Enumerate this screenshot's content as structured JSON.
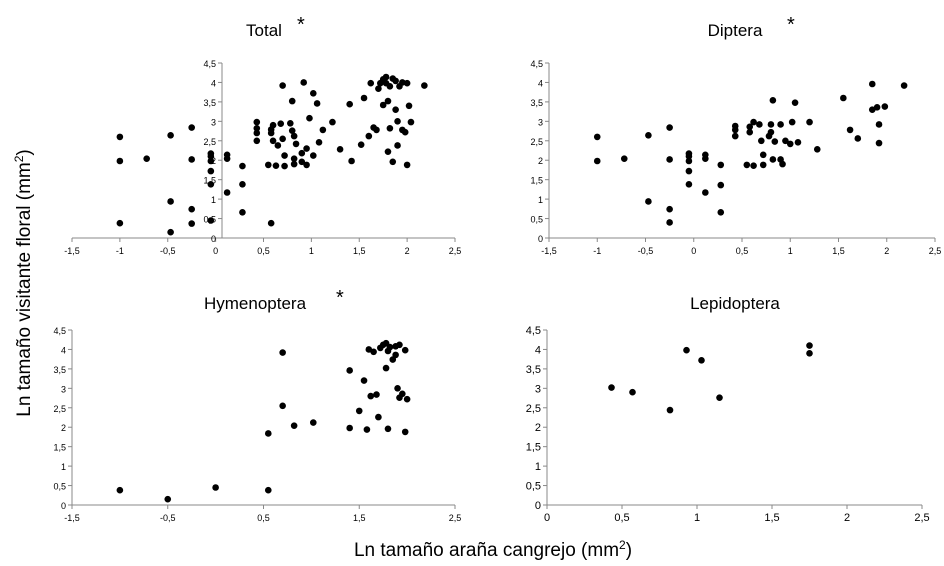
{
  "ylabel_main": "Ln tamaño visitante floral (mm",
  "ylabel_sup": "2",
  "ylabel_close": ")",
  "xlabel_main": "Ln tamaño araña cangrejo (mm",
  "xlabel_sup": "2",
  "xlabel_close": ")",
  "chart_data": [
    {
      "type": "scatter",
      "title": "Total",
      "significance": "*",
      "xlim": [
        -1.5,
        2.5
      ],
      "ylim": [
        0,
        4.5
      ],
      "xticks": [
        -1.5,
        -1,
        -0.5,
        0,
        0.5,
        1,
        1.5,
        2,
        2.5
      ],
      "xtick_labels": [
        "-1,5",
        "-1",
        "-0,5",
        "0",
        "0,5",
        "1",
        "1,5",
        "2",
        "2,5"
      ],
      "yticks": [
        0,
        0.5,
        1,
        1.5,
        2,
        2.5,
        3,
        3.5,
        4,
        4.5
      ],
      "ytick_labels": [
        "0",
        "0,5",
        "1",
        "1,5",
        "2",
        "2,5",
        "3",
        "3,5",
        "4",
        "4,5"
      ],
      "grid": false,
      "points": [
        [
          -1.0,
          2.6
        ],
        [
          -1.0,
          1.98
        ],
        [
          -1.0,
          0.38
        ],
        [
          -0.72,
          2.04
        ],
        [
          -0.47,
          2.64
        ],
        [
          -0.47,
          0.94
        ],
        [
          -0.47,
          0.15
        ],
        [
          -0.25,
          2.84
        ],
        [
          -0.25,
          2.02
        ],
        [
          -0.25,
          0.74
        ],
        [
          -0.25,
          0.37
        ],
        [
          -0.05,
          2.17
        ],
        [
          -0.05,
          2.1
        ],
        [
          -0.05,
          1.98
        ],
        [
          -0.05,
          1.72
        ],
        [
          -0.05,
          1.38
        ],
        [
          -0.05,
          0.45
        ],
        [
          0.12,
          2.14
        ],
        [
          0.12,
          2.04
        ],
        [
          0.12,
          1.17
        ],
        [
          0.28,
          1.85
        ],
        [
          0.28,
          1.38
        ],
        [
          0.28,
          0.66
        ],
        [
          0.43,
          2.98
        ],
        [
          0.43,
          2.82
        ],
        [
          0.43,
          2.7
        ],
        [
          0.43,
          2.5
        ],
        [
          0.55,
          1.88
        ],
        [
          0.58,
          2.79
        ],
        [
          0.58,
          2.7
        ],
        [
          0.58,
          0.38
        ],
        [
          0.6,
          2.5
        ],
        [
          0.6,
          2.9
        ],
        [
          0.63,
          1.86
        ],
        [
          0.65,
          2.38
        ],
        [
          0.68,
          2.94
        ],
        [
          0.7,
          3.92
        ],
        [
          0.7,
          2.55
        ],
        [
          0.72,
          2.12
        ],
        [
          0.72,
          1.85
        ],
        [
          0.78,
          2.95
        ],
        [
          0.8,
          2.76
        ],
        [
          0.8,
          3.52
        ],
        [
          0.82,
          2.62
        ],
        [
          0.82,
          2.04
        ],
        [
          0.82,
          1.9
        ],
        [
          0.84,
          2.42
        ],
        [
          0.9,
          2.18
        ],
        [
          0.9,
          1.96
        ],
        [
          0.92,
          4.0
        ],
        [
          0.95,
          2.3
        ],
        [
          0.95,
          1.88
        ],
        [
          0.98,
          3.08
        ],
        [
          1.02,
          3.72
        ],
        [
          1.02,
          2.12
        ],
        [
          1.06,
          3.46
        ],
        [
          1.08,
          2.46
        ],
        [
          1.12,
          2.78
        ],
        [
          1.22,
          2.98
        ],
        [
          1.3,
          2.28
        ],
        [
          1.4,
          3.44
        ],
        [
          1.42,
          1.98
        ],
        [
          1.52,
          2.4
        ],
        [
          1.55,
          3.6
        ],
        [
          1.6,
          2.62
        ],
        [
          1.62,
          3.98
        ],
        [
          1.65,
          2.84
        ],
        [
          1.68,
          2.78
        ],
        [
          1.7,
          3.84
        ],
        [
          1.72,
          3.98
        ],
        [
          1.75,
          4.08
        ],
        [
          1.75,
          3.42
        ],
        [
          1.78,
          4.14
        ],
        [
          1.78,
          3.98
        ],
        [
          1.8,
          3.52
        ],
        [
          1.8,
          2.22
        ],
        [
          1.82,
          3.9
        ],
        [
          1.82,
          2.82
        ],
        [
          1.85,
          4.1
        ],
        [
          1.85,
          1.96
        ],
        [
          1.88,
          4.04
        ],
        [
          1.88,
          3.3
        ],
        [
          1.9,
          3.0
        ],
        [
          1.9,
          2.38
        ],
        [
          1.92,
          3.9
        ],
        [
          1.95,
          4.0
        ],
        [
          1.95,
          2.78
        ],
        [
          1.98,
          2.72
        ],
        [
          2.0,
          3.98
        ],
        [
          2.0,
          1.88
        ],
        [
          2.02,
          3.4
        ],
        [
          2.04,
          2.98
        ],
        [
          2.18,
          3.92
        ]
      ]
    },
    {
      "type": "scatter",
      "title": "Diptera",
      "significance": "*",
      "xlim": [
        -1.5,
        2.5
      ],
      "ylim": [
        0,
        4.5
      ],
      "xticks": [
        -1.5,
        -1,
        -0.5,
        0,
        0.5,
        1,
        1.5,
        2,
        2.5
      ],
      "xtick_labels": [
        "-1,5",
        "-1",
        "-0,5",
        "0",
        "0,5",
        "1",
        "1,5",
        "2",
        "2,5"
      ],
      "yticks": [
        0,
        0.5,
        1,
        1.5,
        2,
        2.5,
        3,
        3.5,
        4,
        4.5
      ],
      "ytick_labels": [
        "0",
        "0,5",
        "1",
        "1,5",
        "2",
        "2,5",
        "3",
        "3,5",
        "4",
        "4,5"
      ],
      "grid": false,
      "points": [
        [
          -1.0,
          2.6
        ],
        [
          -1.0,
          1.98
        ],
        [
          -0.72,
          2.04
        ],
        [
          -0.47,
          2.64
        ],
        [
          -0.47,
          0.94
        ],
        [
          -0.25,
          2.84
        ],
        [
          -0.25,
          2.02
        ],
        [
          -0.25,
          0.74
        ],
        [
          -0.25,
          0.4
        ],
        [
          -0.05,
          2.17
        ],
        [
          -0.05,
          2.1
        ],
        [
          -0.05,
          1.98
        ],
        [
          -0.05,
          1.72
        ],
        [
          -0.05,
          1.38
        ],
        [
          0.12,
          2.14
        ],
        [
          0.12,
          2.04
        ],
        [
          0.12,
          1.17
        ],
        [
          0.28,
          1.88
        ],
        [
          0.28,
          1.36
        ],
        [
          0.28,
          0.66
        ],
        [
          0.43,
          2.88
        ],
        [
          0.43,
          2.78
        ],
        [
          0.43,
          2.62
        ],
        [
          0.55,
          1.88
        ],
        [
          0.58,
          2.86
        ],
        [
          0.58,
          2.72
        ],
        [
          0.62,
          2.98
        ],
        [
          0.62,
          1.86
        ],
        [
          0.68,
          2.92
        ],
        [
          0.7,
          2.5
        ],
        [
          0.72,
          2.14
        ],
        [
          0.72,
          1.88
        ],
        [
          0.78,
          2.62
        ],
        [
          0.8,
          2.92
        ],
        [
          0.8,
          2.72
        ],
        [
          0.82,
          3.54
        ],
        [
          0.82,
          2.02
        ],
        [
          0.84,
          2.48
        ],
        [
          0.9,
          2.92
        ],
        [
          0.9,
          2.02
        ],
        [
          0.92,
          1.9
        ],
        [
          0.95,
          2.5
        ],
        [
          1.0,
          2.42
        ],
        [
          1.02,
          2.98
        ],
        [
          1.05,
          3.48
        ],
        [
          1.08,
          2.46
        ],
        [
          1.2,
          2.98
        ],
        [
          1.28,
          2.28
        ],
        [
          1.55,
          3.6
        ],
        [
          1.62,
          2.78
        ],
        [
          1.7,
          2.56
        ],
        [
          1.85,
          3.96
        ],
        [
          1.85,
          3.3
        ],
        [
          1.9,
          3.36
        ],
        [
          1.92,
          2.92
        ],
        [
          1.92,
          2.44
        ],
        [
          1.98,
          3.38
        ],
        [
          2.18,
          3.92
        ]
      ]
    },
    {
      "type": "scatter",
      "title": "Hymenoptera",
      "significance": "*",
      "xlim": [
        -1.5,
        2.5
      ],
      "ylim": [
        0,
        4.5
      ],
      "xticks": [
        -1.5,
        -0.5,
        0.5,
        1.5,
        2.5
      ],
      "xtick_labels": [
        "-1,5",
        "-0,5",
        "0,5",
        "1,5",
        "2,5"
      ],
      "yticks": [
        0,
        0.5,
        1,
        1.5,
        2,
        2.5,
        3,
        3.5,
        4,
        4.5
      ],
      "ytick_labels": [
        "0",
        "0,5",
        "1",
        "1,5",
        "2",
        "2,5",
        "3",
        "3,5",
        "4",
        "4,5"
      ],
      "grid": false,
      "points": [
        [
          -1.0,
          0.38
        ],
        [
          -0.5,
          0.15
        ],
        [
          0.0,
          0.45
        ],
        [
          0.55,
          0.38
        ],
        [
          0.55,
          1.84
        ],
        [
          0.7,
          3.92
        ],
        [
          0.7,
          2.55
        ],
        [
          0.82,
          2.04
        ],
        [
          1.02,
          2.12
        ],
        [
          1.4,
          3.46
        ],
        [
          1.4,
          1.98
        ],
        [
          1.5,
          2.42
        ],
        [
          1.55,
          3.2
        ],
        [
          1.58,
          1.94
        ],
        [
          1.6,
          4.0
        ],
        [
          1.62,
          2.8
        ],
        [
          1.65,
          3.94
        ],
        [
          1.68,
          2.84
        ],
        [
          1.7,
          2.26
        ],
        [
          1.72,
          4.04
        ],
        [
          1.75,
          4.12
        ],
        [
          1.78,
          4.16
        ],
        [
          1.78,
          3.52
        ],
        [
          1.8,
          3.96
        ],
        [
          1.8,
          1.96
        ],
        [
          1.82,
          4.06
        ],
        [
          1.85,
          3.74
        ],
        [
          1.88,
          4.08
        ],
        [
          1.88,
          3.86
        ],
        [
          1.9,
          3.0
        ],
        [
          1.92,
          4.12
        ],
        [
          1.92,
          2.76
        ],
        [
          1.95,
          2.86
        ],
        [
          1.98,
          3.98
        ],
        [
          1.98,
          1.88
        ],
        [
          2.0,
          2.72
        ]
      ]
    },
    {
      "type": "scatter",
      "title": "Lepidoptera",
      "significance": "",
      "xlim": [
        0,
        2.5
      ],
      "ylim": [
        0,
        4.5
      ],
      "xticks": [
        0,
        0.5,
        1,
        1.5,
        2,
        2.5
      ],
      "xtick_labels": [
        "0",
        "0,5",
        "1",
        "1,5",
        "2",
        "2,5"
      ],
      "yticks": [
        0,
        0.5,
        1,
        1.5,
        2,
        2.5,
        3,
        3.5,
        4,
        4.5
      ],
      "ytick_labels": [
        "0",
        "0,5",
        "1",
        "1,5",
        "2",
        "2,5",
        "3",
        "3,5",
        "4",
        "4,5"
      ],
      "grid": false,
      "points": [
        [
          0.43,
          3.02
        ],
        [
          0.57,
          2.9
        ],
        [
          0.82,
          2.44
        ],
        [
          0.93,
          3.98
        ],
        [
          1.03,
          3.72
        ],
        [
          1.15,
          2.76
        ],
        [
          1.75,
          4.1
        ],
        [
          1.75,
          3.9
        ]
      ]
    }
  ]
}
